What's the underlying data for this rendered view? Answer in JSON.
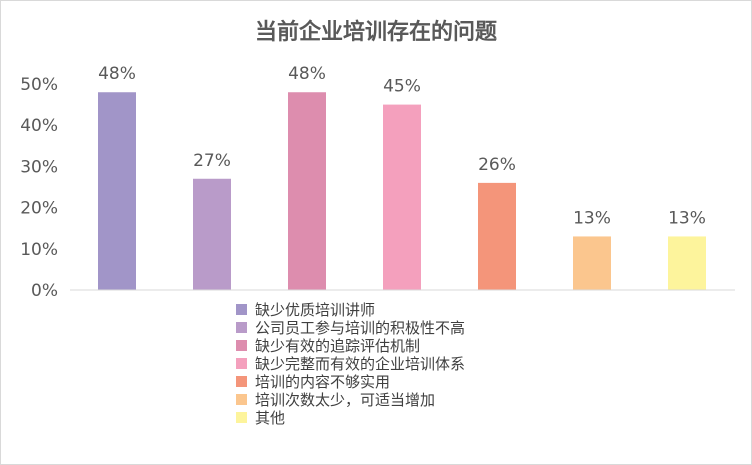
{
  "chart_data": {
    "type": "bar",
    "title": "当前企业培训存在的问题",
    "categories": [
      "缺少优质培训讲师",
      "公司员工参与培训的积极性不高",
      "缺少有效的追踪评估机制",
      "缺少完整而有效的企业培训体系",
      "培训的内容不够实用",
      "培训次数太少，可适当增加",
      "其他"
    ],
    "values": [
      48,
      27,
      48,
      45,
      26,
      13,
      13
    ],
    "data_labels": [
      "48%",
      "27%",
      "48%",
      "45%",
      "26%",
      "13%",
      "13%"
    ],
    "colors": [
      "#a195c8",
      "#b99bc9",
      "#dd8dae",
      "#f4a0bd",
      "#f4957a",
      "#fbc68e",
      "#fdf49c"
    ],
    "ylim": [
      0,
      50
    ],
    "yticks": [
      0,
      10,
      20,
      30,
      40,
      50
    ],
    "ytick_labels": [
      "0%",
      "10%",
      "20%",
      "30%",
      "40%",
      "50%"
    ],
    "grid": false,
    "legend_position": "bottom",
    "xlabel": "",
    "ylabel": ""
  }
}
